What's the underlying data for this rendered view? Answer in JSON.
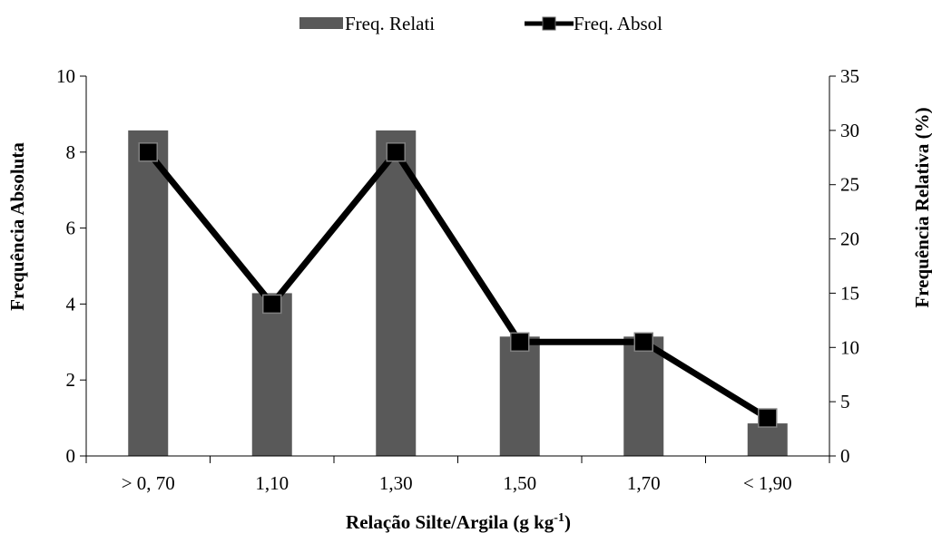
{
  "chart_data": {
    "type": "bar",
    "categories": [
      "> 0, 70",
      "1,10",
      "1,30",
      "1,50",
      "1,70",
      "< 1,90"
    ],
    "series": [
      {
        "name": "Freq. Relati",
        "type": "bar",
        "axis": "right",
        "color": "#595959",
        "values": [
          30,
          15,
          30,
          11,
          11,
          3
        ]
      },
      {
        "name": "Freq. Absol",
        "type": "line",
        "axis": "left",
        "color": "#000000",
        "values": [
          8,
          4,
          8,
          3,
          3,
          1
        ]
      }
    ],
    "xlabel": "Relação Silte/Argila (g kg",
    "xlabel_sup": "-1",
    "xlabel_end": ")",
    "ylabel": "Frequência Absoluta",
    "ylabel_right": "Frequência Relativa (%)",
    "ylim": [
      0,
      10
    ],
    "yticks": [
      "0",
      "2",
      "4",
      "6",
      "8",
      "10"
    ],
    "ylim_right": [
      0,
      35
    ],
    "yticks_right": [
      "0",
      "5",
      "10",
      "15",
      "20",
      "25",
      "30",
      "35"
    ],
    "legend_position": "top",
    "grid": false
  }
}
